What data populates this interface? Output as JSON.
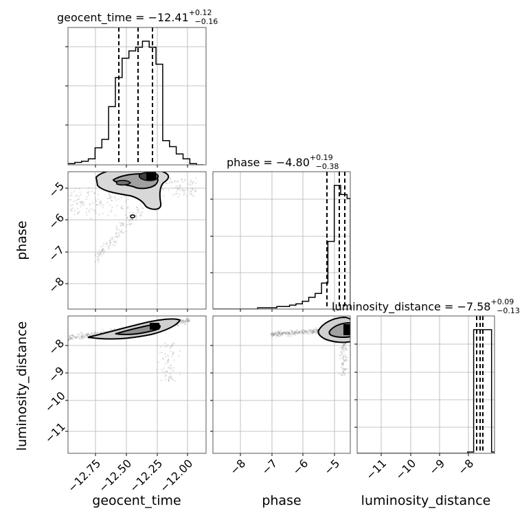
{
  "chart_data": {
    "type": "corner",
    "parameters": [
      "geocent_time",
      "phase",
      "luminosity_distance"
    ],
    "titles": [
      {
        "prefix": "geocent_time = −12.41",
        "plus": "+0.12",
        "minus": "−0.16"
      },
      {
        "prefix": "phase = −4.80",
        "plus": "+0.19",
        "minus": "−0.38"
      },
      {
        "prefix": "luminosity_distance = −7.58",
        "plus": "+0.09",
        "minus": "−0.13"
      }
    ],
    "ranges": [
      [
        -12.95,
        -11.93
      ],
      [
        -8.9,
        -4.6
      ],
      [
        -11.7,
        -7.1
      ]
    ],
    "ticks": {
      "geocent_time": [
        -12.75,
        -12.5,
        -12.25,
        -12.0
      ],
      "phase": [
        -8,
        -7,
        -6,
        -5
      ],
      "luminosity_distance": [
        -11,
        -10,
        -9,
        -8
      ]
    },
    "tick_labels": {
      "geocent_time": [
        "−12.75",
        "−12.50",
        "−12.25",
        "−12.00"
      ],
      "phase": [
        "−8",
        "−7",
        "−6",
        "−5"
      ],
      "luminosity_distance": [
        "−11",
        "−10",
        "−9",
        "−8"
      ]
    },
    "quantiles": {
      "geocent_time": [
        -12.57,
        -12.41,
        -12.29
      ],
      "phase": [
        -5.18,
        -4.8,
        -4.61
      ],
      "luminosity_distance": [
        -7.71,
        -7.58,
        -7.49
      ]
    },
    "histograms": {
      "geocent_time": {
        "edges": [
          -12.95,
          -12.9,
          -12.85,
          -12.8,
          -12.75,
          -12.7,
          -12.65,
          -12.6,
          -12.55,
          -12.5,
          -12.45,
          -12.4,
          -12.35,
          -12.3,
          -12.25,
          -12.2,
          -12.15,
          -12.1,
          -12.05,
          -12.0,
          -11.95
        ],
        "counts": [
          1,
          2,
          3,
          5,
          14,
          21,
          48,
          72,
          88,
          94,
          97,
          102,
          97,
          83,
          20,
          15,
          9,
          5,
          1,
          0
        ]
      },
      "phase": {
        "edges": [
          -8.9,
          -8.7,
          -8.5,
          -8.3,
          -8.1,
          -7.9,
          -7.7,
          -7.5,
          -7.3,
          -7.1,
          -6.9,
          -6.7,
          -6.5,
          -6.3,
          -6.1,
          -5.9,
          -5.7,
          -5.5,
          -5.3,
          -5.1,
          -4.9,
          -4.7,
          -4.6
        ],
        "counts": [
          0,
          0,
          0,
          0,
          0,
          0,
          0,
          1,
          1,
          1,
          2,
          2,
          3,
          4,
          6,
          9,
          12,
          20,
          52,
          95,
          88,
          85
        ]
      },
      "luminosity_distance": {
        "edges": [
          -11.7,
          -8.0,
          -7.8,
          -7.6,
          -7.4,
          -7.2,
          -7.1
        ],
        "counts": [
          0,
          1,
          95,
          95,
          95,
          1
        ]
      }
    },
    "grid": true,
    "axis_labels": [
      "geocent_time",
      "phase",
      "luminosity_distance"
    ]
  }
}
